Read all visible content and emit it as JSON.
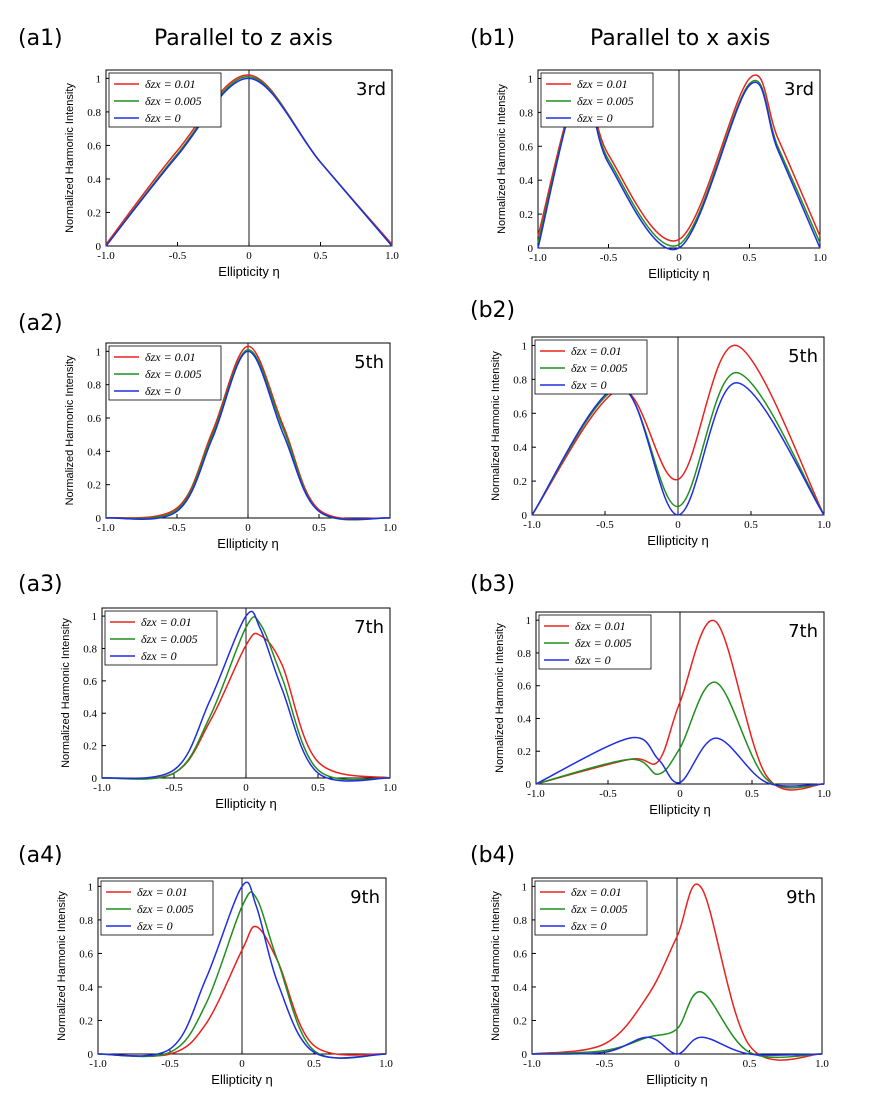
{
  "column_titles": [
    "Parallel to z axis",
    "Parallel to x axis"
  ],
  "shared": {
    "ylabel": "Normalized Harmonic Intensity",
    "xlabel": "Ellipticity η",
    "x_ticks": [
      "-1.0",
      "-0.5",
      "0",
      "0.5",
      "1.0"
    ],
    "y_ticks": [
      "0",
      "0.2",
      "0.4",
      "0.6",
      "0.8",
      "1"
    ],
    "legend": [
      "δzx = 0.01",
      "δzx = 0.005",
      "δzx = 0"
    ],
    "colors": {
      "red": "#e8231f",
      "green": "#1f8f1f",
      "blue": "#1f2ee0"
    }
  },
  "chart_data": [
    {
      "id": "a1",
      "panel_label": "(a1)",
      "order": "3rd",
      "type": "line",
      "xlim": [
        -1,
        1
      ],
      "ylim": [
        0,
        1.05
      ],
      "x": [
        -1.0,
        -0.5,
        0,
        0.5,
        1.0
      ],
      "series": [
        {
          "name": "δzx = 0.01",
          "color": "#e8231f",
          "values": [
            0.01,
            0.57,
            1.02,
            0.5,
            0.01
          ]
        },
        {
          "name": "δzx = 0.005",
          "color": "#1f8f1f",
          "values": [
            0.0,
            0.55,
            1.01,
            0.5,
            0.0
          ]
        },
        {
          "name": "δzx = 0",
          "color": "#1f2ee0",
          "values": [
            0.0,
            0.54,
            1.0,
            0.5,
            0.0
          ]
        }
      ]
    },
    {
      "id": "a2",
      "panel_label": "(a2)",
      "order": "5th",
      "type": "line",
      "xlim": [
        -1,
        1
      ],
      "ylim": [
        0,
        1.05
      ],
      "x": [
        -1.0,
        -0.5,
        -0.25,
        0,
        0.25,
        0.5,
        1.0
      ],
      "series": [
        {
          "name": "δzx = 0.01",
          "color": "#e8231f",
          "values": [
            0.0,
            0.06,
            0.52,
            1.03,
            0.55,
            0.05,
            0.0
          ]
        },
        {
          "name": "δzx = 0.005",
          "color": "#1f8f1f",
          "values": [
            0.0,
            0.05,
            0.5,
            1.01,
            0.53,
            0.04,
            0.0
          ]
        },
        {
          "name": "δzx = 0",
          "color": "#1f2ee0",
          "values": [
            0.0,
            0.04,
            0.48,
            1.0,
            0.5,
            0.04,
            0.0
          ]
        }
      ]
    },
    {
      "id": "a3",
      "panel_label": "(a3)",
      "order": "7th",
      "type": "line",
      "xlim": [
        -1,
        1
      ],
      "ylim": [
        0,
        1.05
      ],
      "x": [
        -1.0,
        -0.5,
        -0.25,
        0,
        0.1,
        0.25,
        0.5,
        1.0
      ],
      "series": [
        {
          "name": "δzx = 0.01",
          "color": "#e8231f",
          "values": [
            0.0,
            0.03,
            0.35,
            0.82,
            0.88,
            0.7,
            0.1,
            0.0
          ]
        },
        {
          "name": "δzx = 0.005",
          "color": "#1f8f1f",
          "values": [
            0.0,
            0.03,
            0.38,
            0.93,
            0.95,
            0.62,
            0.05,
            0.0
          ]
        },
        {
          "name": "δzx = 0",
          "color": "#1f2ee0",
          "values": [
            0.0,
            0.05,
            0.48,
            1.0,
            0.92,
            0.55,
            0.03,
            0.0
          ]
        }
      ]
    },
    {
      "id": "a4",
      "panel_label": "(a4)",
      "order": "9th",
      "type": "line",
      "xlim": [
        -1,
        1
      ],
      "ylim": [
        0,
        1.05
      ],
      "x": [
        -1.0,
        -0.5,
        -0.25,
        0,
        0.1,
        0.25,
        0.5,
        1.0
      ],
      "series": [
        {
          "name": "δzx = 0.01",
          "color": "#e8231f",
          "values": [
            0.0,
            0.0,
            0.18,
            0.62,
            0.76,
            0.55,
            0.05,
            0.0
          ]
        },
        {
          "name": "δzx = 0.005",
          "color": "#1f8f1f",
          "values": [
            0.0,
            0.01,
            0.3,
            0.88,
            0.93,
            0.55,
            0.02,
            0.0
          ]
        },
        {
          "name": "δzx = 0",
          "color": "#1f2ee0",
          "values": [
            0.0,
            0.03,
            0.45,
            1.0,
            0.88,
            0.42,
            0.01,
            0.0
          ]
        }
      ]
    },
    {
      "id": "b1",
      "panel_label": "(b1)",
      "order": "3rd",
      "type": "line",
      "xlim": [
        -1,
        1
      ],
      "ylim": [
        0,
        1.05
      ],
      "x": [
        -1.0,
        -0.7,
        -0.5,
        0,
        0.5,
        0.7,
        1.0
      ],
      "series": [
        {
          "name": "δzx = 0.01",
          "color": "#e8231f",
          "values": [
            0.07,
            0.98,
            0.55,
            0.05,
            1.0,
            0.65,
            0.07
          ]
        },
        {
          "name": "δzx = 0.005",
          "color": "#1f8f1f",
          "values": [
            0.03,
            0.97,
            0.52,
            0.02,
            0.97,
            0.6,
            0.03
          ]
        },
        {
          "name": "δzx = 0",
          "color": "#1f2ee0",
          "values": [
            0.0,
            0.97,
            0.5,
            0.0,
            0.96,
            0.58,
            0.0
          ]
        }
      ]
    },
    {
      "id": "b2",
      "panel_label": "(b2)",
      "order": "5th",
      "type": "line",
      "xlim": [
        -1,
        1
      ],
      "ylim": [
        0,
        1.05
      ],
      "x": [
        -1.0,
        -0.4,
        0,
        0.4,
        1.0
      ],
      "series": [
        {
          "name": "δzx = 0.01",
          "color": "#e8231f",
          "values": [
            0.0,
            0.74,
            0.21,
            1.0,
            0.0
          ]
        },
        {
          "name": "δzx = 0.005",
          "color": "#1f8f1f",
          "values": [
            0.0,
            0.75,
            0.05,
            0.84,
            0.0
          ]
        },
        {
          "name": "δzx = 0",
          "color": "#1f2ee0",
          "values": [
            0.0,
            0.76,
            0.0,
            0.78,
            0.0
          ]
        }
      ]
    },
    {
      "id": "b3",
      "panel_label": "(b3)",
      "order": "7th",
      "type": "line",
      "xlim": [
        -1,
        1
      ],
      "ylim": [
        0,
        1.05
      ],
      "x": [
        -1.0,
        -0.35,
        -0.15,
        0,
        0.25,
        0.6,
        1.0
      ],
      "series": [
        {
          "name": "δzx = 0.01",
          "color": "#e8231f",
          "values": [
            0.0,
            0.15,
            0.14,
            0.5,
            0.99,
            0.05,
            0.0
          ]
        },
        {
          "name": "δzx = 0.005",
          "color": "#1f8f1f",
          "values": [
            0.0,
            0.15,
            0.06,
            0.22,
            0.62,
            0.03,
            0.0
          ]
        },
        {
          "name": "δzx = 0",
          "color": "#1f2ee0",
          "values": [
            0.0,
            0.28,
            0.15,
            0.01,
            0.28,
            0.01,
            0.0
          ]
        }
      ]
    },
    {
      "id": "b4",
      "panel_label": "(b4)",
      "order": "9th",
      "type": "line",
      "xlim": [
        -1,
        1
      ],
      "ylim": [
        0,
        1.05
      ],
      "x": [
        -1.0,
        -0.5,
        -0.2,
        0,
        0.17,
        0.5,
        1.0
      ],
      "series": [
        {
          "name": "δzx = 0.01",
          "color": "#e8231f",
          "values": [
            0.0,
            0.06,
            0.35,
            0.7,
            0.99,
            0.05,
            0.0
          ]
        },
        {
          "name": "δzx = 0.005",
          "color": "#1f8f1f",
          "values": [
            0.0,
            0.02,
            0.1,
            0.15,
            0.37,
            0.01,
            0.0
          ]
        },
        {
          "name": "δzx = 0",
          "color": "#1f2ee0",
          "values": [
            0.0,
            0.01,
            0.1,
            0.0,
            0.1,
            0.0,
            0.0
          ]
        }
      ]
    }
  ]
}
